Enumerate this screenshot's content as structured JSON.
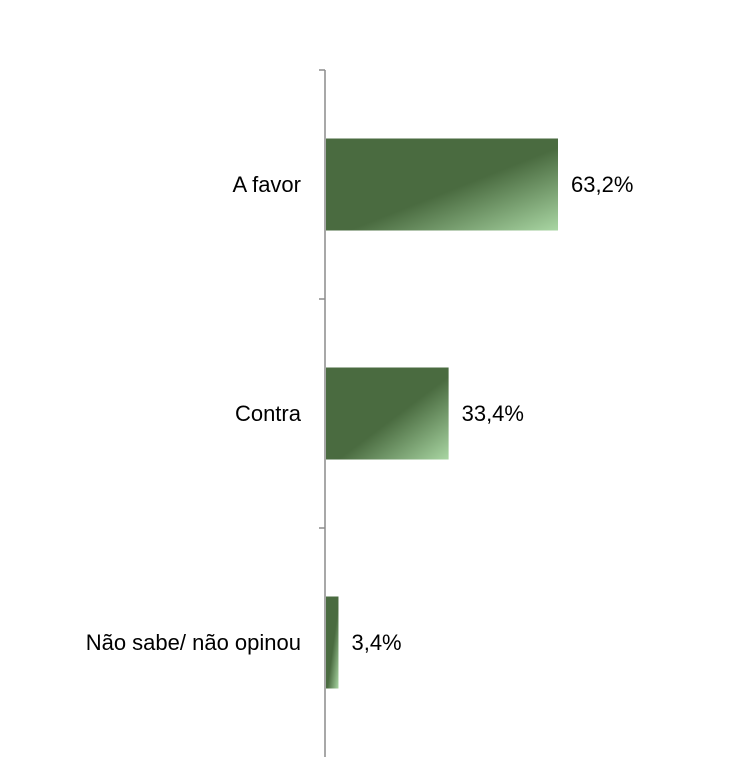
{
  "chart_data": {
    "type": "bar",
    "orientation": "horizontal",
    "categories": [
      "A favor",
      "Contra",
      "Não sabe/ não opinou"
    ],
    "values": [
      63.2,
      33.4,
      3.4
    ],
    "value_labels": [
      "63,2%",
      "33,4%",
      "3,4%"
    ],
    "title": "",
    "xlabel": "",
    "ylabel": "",
    "grid": false,
    "legend": "none",
    "colors": {
      "bar_dark": "#4a6b40",
      "bar_light": "#a9d6a3",
      "axis": "#8c8c8c"
    }
  }
}
